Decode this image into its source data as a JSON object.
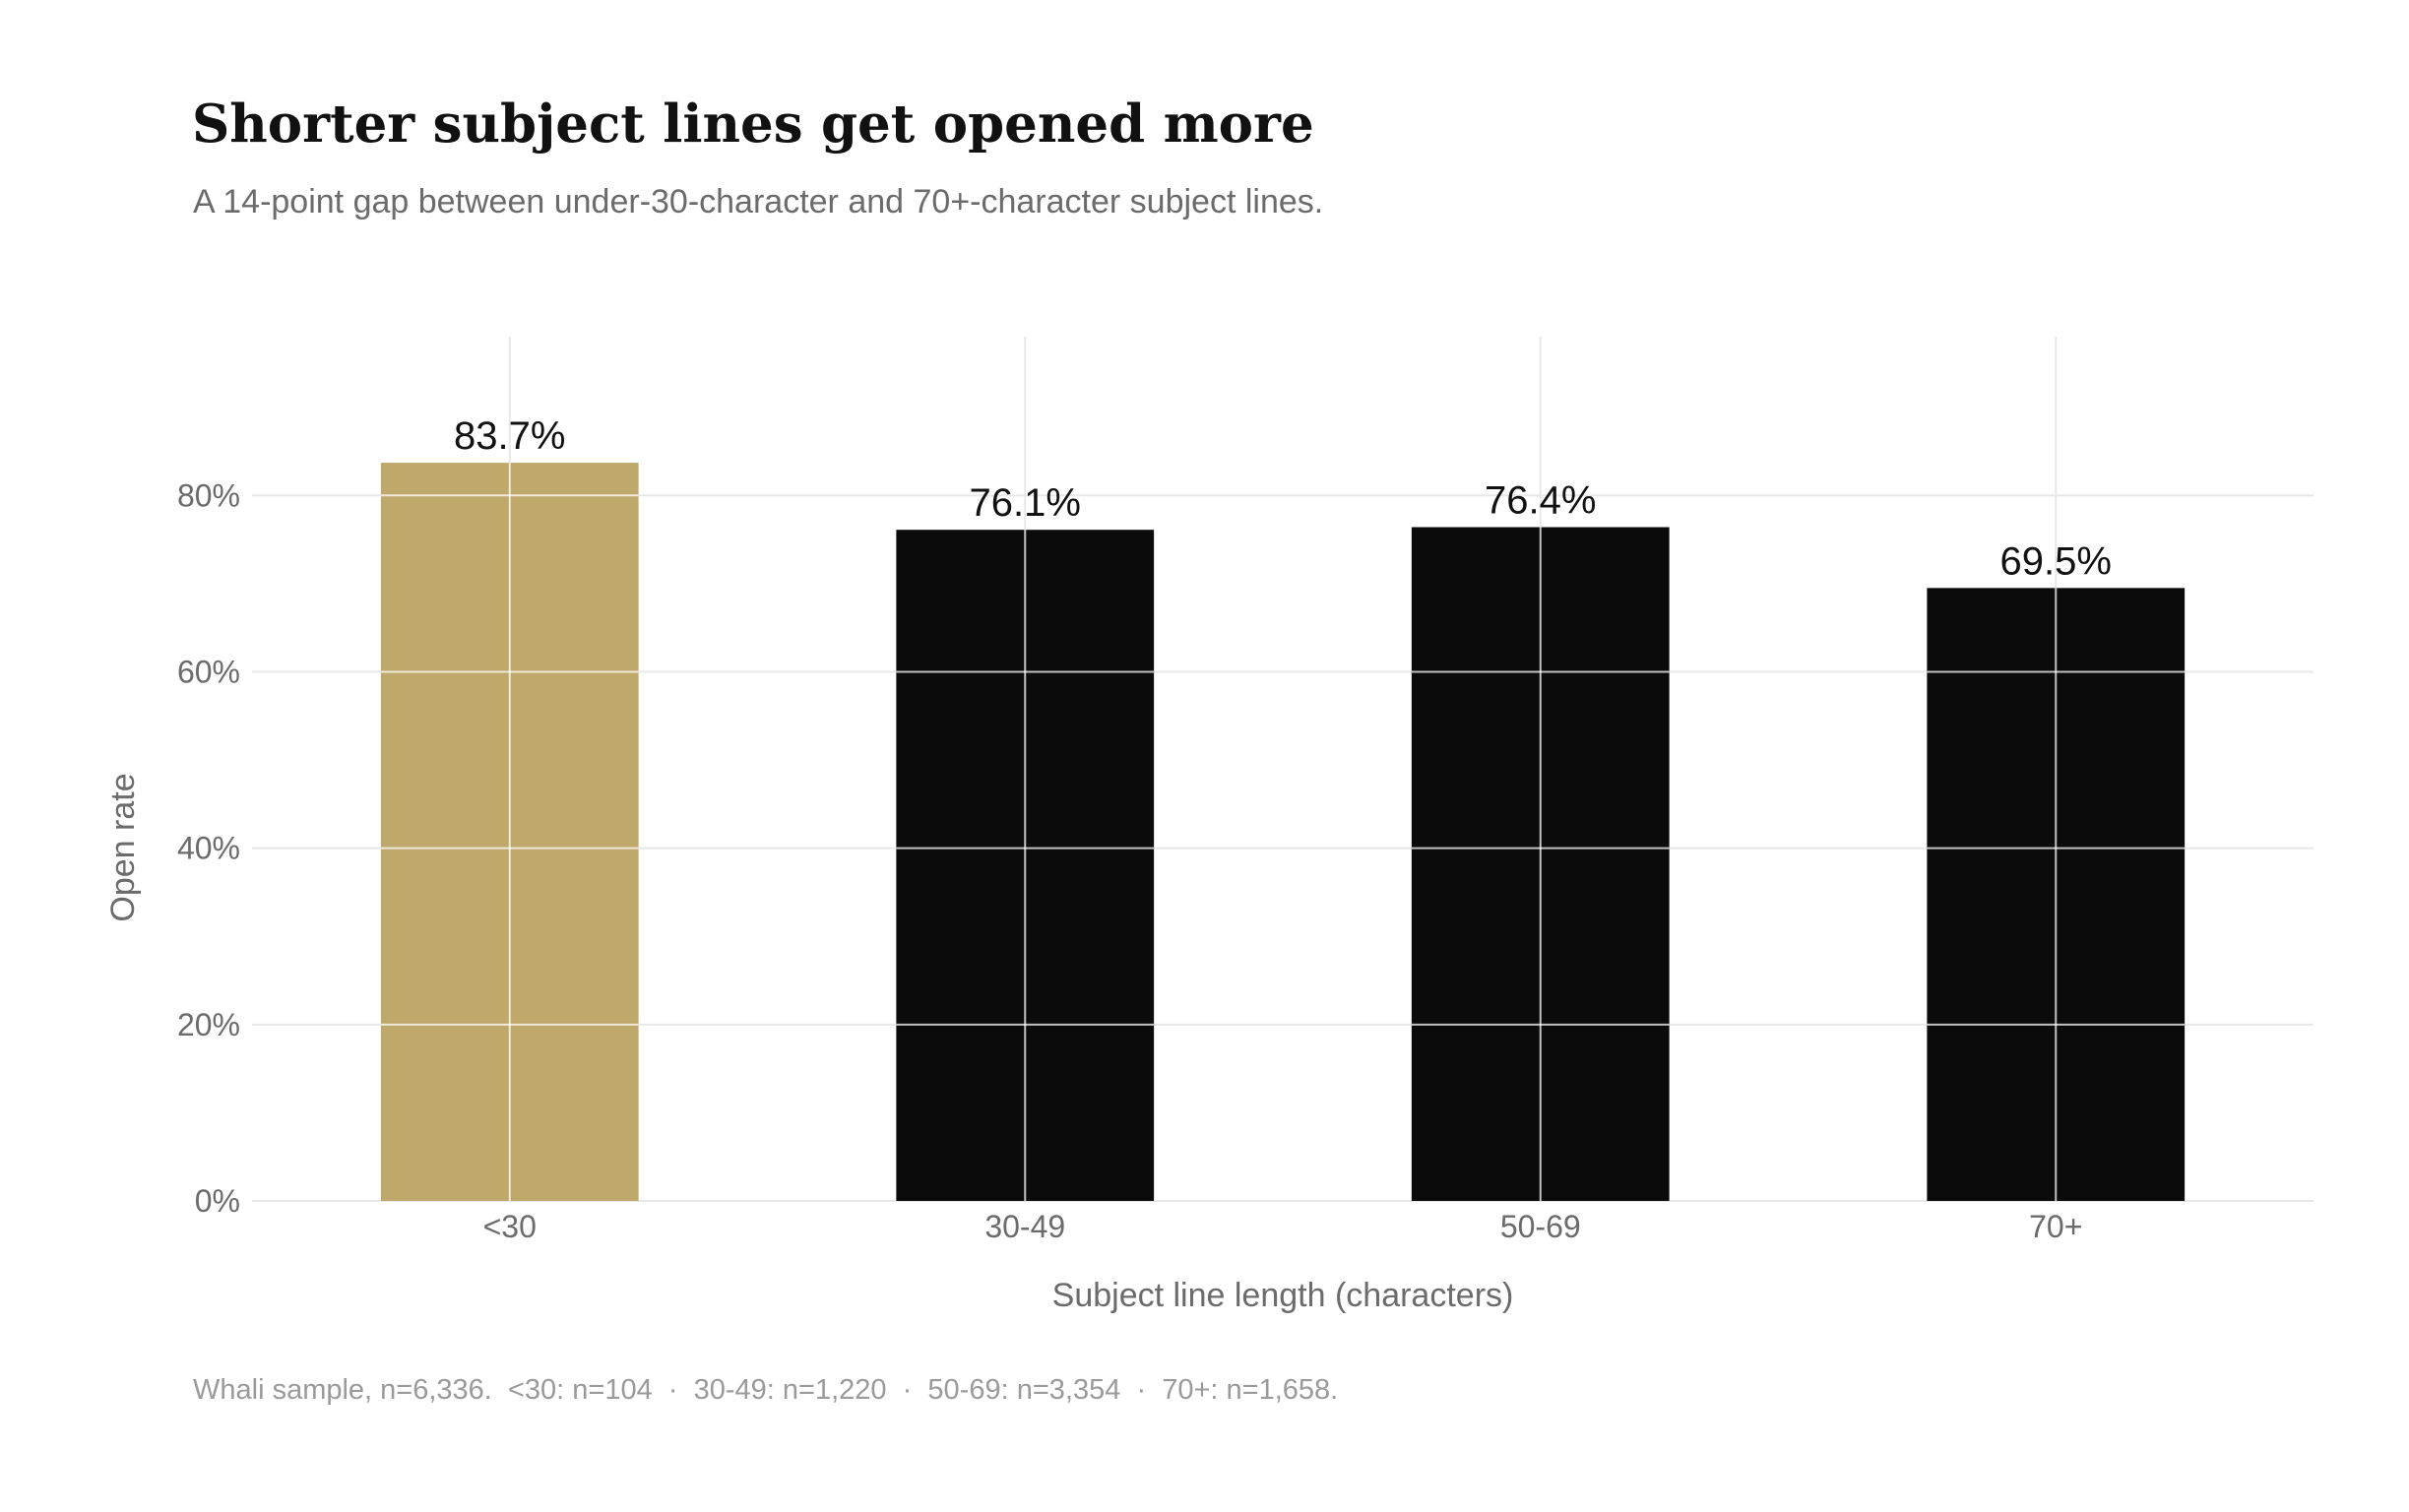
{
  "title": "Shorter subject lines get opened more",
  "subtitle": "A 14-point gap between under-30-character and 70+-character subject lines.",
  "footnote": "Whali sample, n=6,336.  <30: n=104  ·  30-49: n=1,220  ·  50-69: n=3,354  ·  70+: n=1,658.",
  "colors": {
    "highlight": "#bea96b",
    "bar": "#0b0b0b",
    "grid": "#e8e8e8",
    "axis_text": "#6b6b6b",
    "label_text": "#111111"
  },
  "chart_data": {
    "type": "bar",
    "categories": [
      "<30",
      "30-49",
      "50-69",
      "70+"
    ],
    "values": [
      83.7,
      76.1,
      76.4,
      69.5
    ],
    "data_labels": [
      "83.7%",
      "76.1%",
      "76.4%",
      "69.5%"
    ],
    "highlight_index": 0,
    "xlabel": "Subject line length (characters)",
    "ylabel": "Open rate",
    "ylim": [
      0,
      98
    ],
    "yticks": [
      0,
      20,
      40,
      60,
      80
    ],
    "ytick_labels": [
      "0%",
      "20%",
      "40%",
      "60%",
      "80%"
    ],
    "grid": true,
    "legend": "none"
  }
}
